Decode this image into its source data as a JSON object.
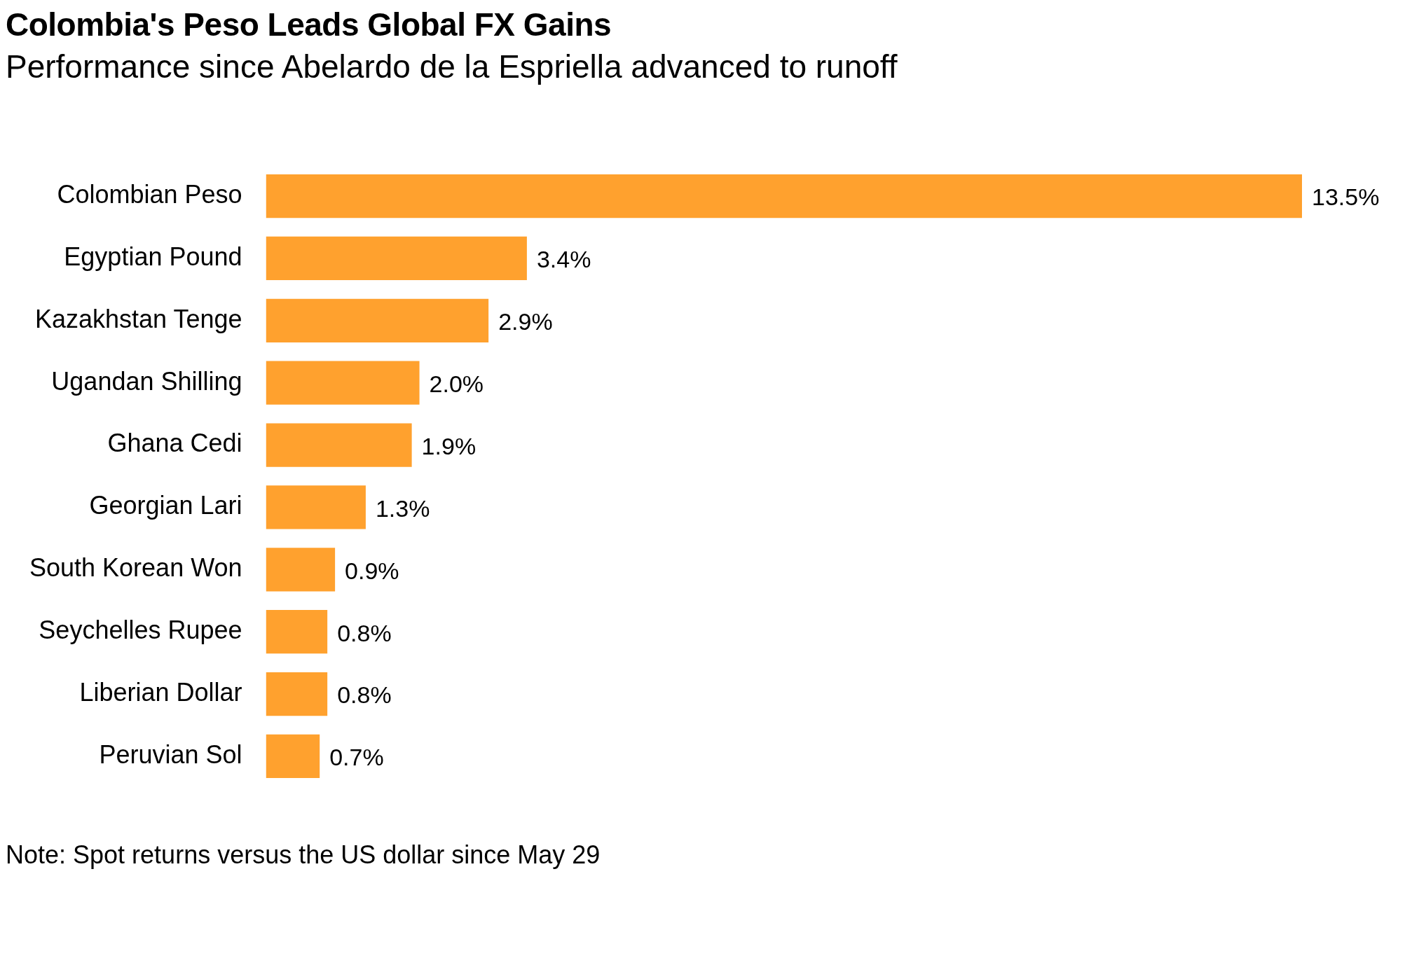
{
  "chart_data": {
    "type": "bar",
    "orientation": "horizontal",
    "title": "Colombia's Peso Leads Global FX Gains",
    "subtitle": "Performance since Abelardo de la Espriella advanced to runoff",
    "categories": [
      "Colombian Peso",
      "Egyptian Pound",
      "Kazakhstan Tenge",
      "Ugandan Shilling",
      "Ghana Cedi",
      "Georgian Lari",
      "South Korean Won",
      "Seychelles Rupee",
      "Liberian Dollar",
      "Peruvian Sol"
    ],
    "values": [
      13.5,
      3.4,
      2.9,
      2.0,
      1.9,
      1.3,
      0.9,
      0.8,
      0.8,
      0.7
    ],
    "value_labels": [
      "13.5%",
      "3.4%",
      "2.9%",
      "2.0%",
      "1.9%",
      "1.3%",
      "0.9%",
      "0.8%",
      "0.8%",
      "0.7%"
    ],
    "color": "#ffa12e",
    "grid": false,
    "legend": false,
    "tick_labels": "y",
    "annotations": [
      "Note: Spot returns versus the US dollar since May 29"
    ]
  }
}
